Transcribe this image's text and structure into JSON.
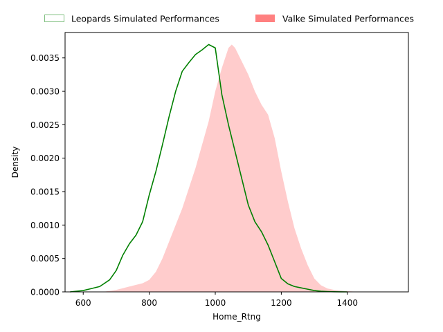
{
  "chart_data": {
    "type": "area",
    "xlabel": "Home_Rtng",
    "ylabel": "Density",
    "xlim": [
      545,
      1585
    ],
    "ylim": [
      0,
      0.00388
    ],
    "x_ticks": [
      600,
      800,
      1000,
      1200,
      1400
    ],
    "x_tick_labels": [
      "600",
      "800",
      "1000",
      "1200",
      "1400"
    ],
    "y_ticks": [
      0,
      0.0005,
      0.001,
      0.0015,
      0.002,
      0.0025,
      0.003,
      0.0035
    ],
    "y_tick_labels": [
      "0.0000",
      "0.0005",
      "0.0010",
      "0.0015",
      "0.0020",
      "0.0025",
      "0.0030",
      "0.0035"
    ],
    "grid": false,
    "legend_position": "top, outside plot area",
    "series": [
      {
        "name": "Leopards Simulated Performances",
        "style": "line",
        "color": "#008000",
        "legend_edge_color": "#7fbf7f",
        "x": [
          560,
          600,
          650,
          680,
          700,
          720,
          740,
          760,
          780,
          800,
          820,
          840,
          860,
          880,
          900,
          920,
          940,
          960,
          980,
          1000,
          1010,
          1020,
          1040,
          1060,
          1080,
          1100,
          1120,
          1140,
          1160,
          1180,
          1200,
          1220,
          1240,
          1260,
          1280,
          1300,
          1320,
          1340,
          1360,
          1380,
          1400
        ],
        "y": [
          0,
          2e-05,
          8e-05,
          0.00018,
          0.00032,
          0.00055,
          0.00072,
          0.00085,
          0.00105,
          0.00145,
          0.0018,
          0.0022,
          0.00262,
          0.003,
          0.0033,
          0.00343,
          0.00355,
          0.00362,
          0.0037,
          0.00365,
          0.0033,
          0.00295,
          0.0025,
          0.0021,
          0.0017,
          0.0013,
          0.00105,
          0.0009,
          0.0007,
          0.00045,
          0.0002,
          0.00012,
          8e-05,
          6e-05,
          4e-05,
          2e-05,
          1e-05,
          5e-06,
          2e-06,
          1e-06,
          0
        ]
      },
      {
        "name": "Valke Simulated Performances",
        "style": "filled",
        "color": "#ff8080",
        "x": [
          660,
          700,
          740,
          780,
          800,
          820,
          840,
          860,
          880,
          900,
          920,
          940,
          960,
          980,
          1000,
          1020,
          1040,
          1050,
          1060,
          1080,
          1100,
          1120,
          1140,
          1160,
          1180,
          1200,
          1220,
          1240,
          1260,
          1280,
          1300,
          1320,
          1340,
          1360,
          1380,
          1400,
          1420,
          1440,
          1460,
          1475
        ],
        "y": [
          0,
          3e-05,
          8e-05,
          0.00013,
          0.00018,
          0.0003,
          0.0005,
          0.00075,
          0.001,
          0.00125,
          0.00155,
          0.00185,
          0.0022,
          0.00255,
          0.003,
          0.00335,
          0.00365,
          0.0037,
          0.00365,
          0.00345,
          0.00325,
          0.003,
          0.0028,
          0.00265,
          0.0023,
          0.0018,
          0.00135,
          0.00095,
          0.00065,
          0.0004,
          0.0002,
          0.0001,
          5e-05,
          3e-05,
          2e-05,
          1e-05,
          5e-06,
          2e-06,
          1e-06,
          0
        ]
      }
    ]
  }
}
